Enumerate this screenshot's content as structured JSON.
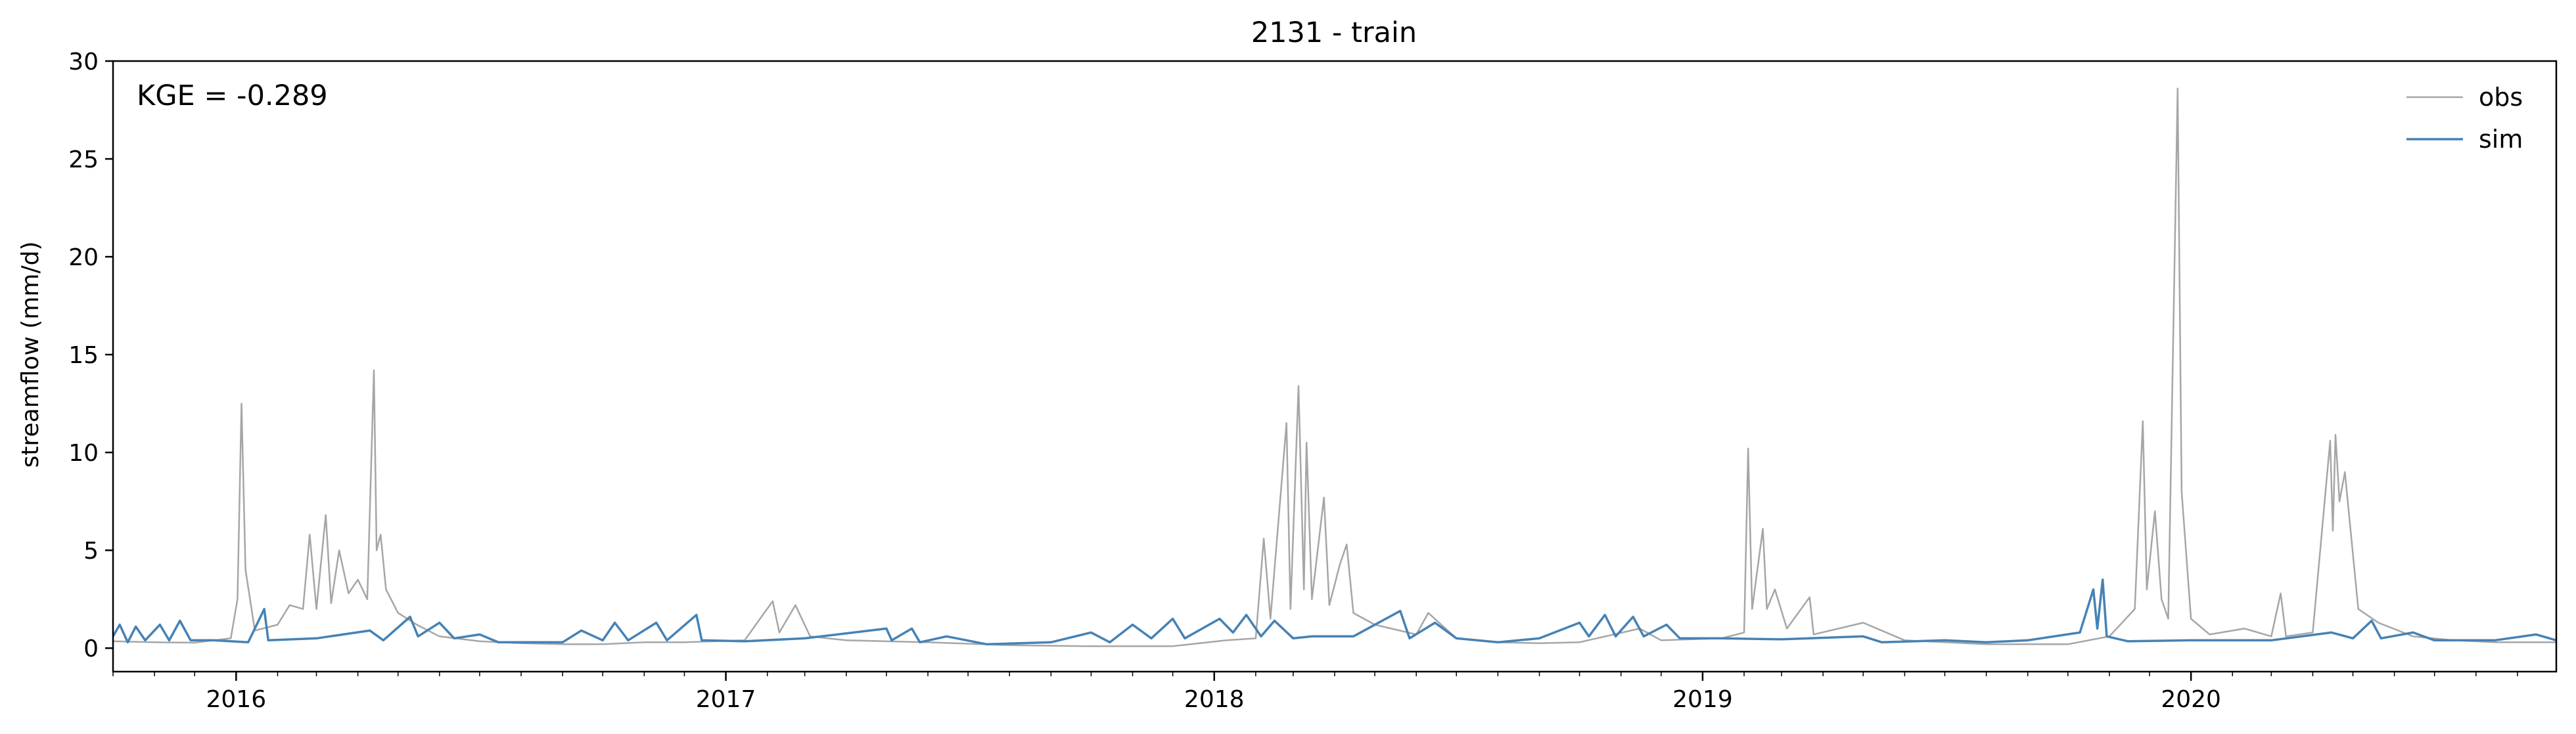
{
  "chart_data": {
    "type": "line",
    "title": "2131 - train",
    "xlabel": "",
    "ylabel": "streamflow (mm/d)",
    "annotation": "KGE = -0.289",
    "xlim": [
      "2015-10-01",
      "2020-09-30"
    ],
    "ylim": [
      -1.2,
      30
    ],
    "yticks": [
      0,
      5,
      10,
      15,
      20,
      25,
      30
    ],
    "xticks": [
      {
        "date": "2016-01-01",
        "label": "2016"
      },
      {
        "date": "2017-01-01",
        "label": "2017"
      },
      {
        "date": "2018-01-01",
        "label": "2018"
      },
      {
        "date": "2019-01-01",
        "label": "2019"
      },
      {
        "date": "2020-01-01",
        "label": "2020"
      }
    ],
    "legend": {
      "placement": "top-right"
    },
    "series": [
      {
        "name": "obs",
        "color": "#a6a6a6",
        "points": [
          [
            "2015-10-01",
            0.35
          ],
          [
            "2015-11-01",
            0.3
          ],
          [
            "2015-12-01",
            0.28
          ],
          [
            "2015-12-28",
            0.5
          ],
          [
            "2016-01-02",
            2.5
          ],
          [
            "2016-01-05",
            12.5
          ],
          [
            "2016-01-08",
            4.0
          ],
          [
            "2016-01-15",
            0.9
          ],
          [
            "2016-02-01",
            1.2
          ],
          [
            "2016-02-10",
            2.2
          ],
          [
            "2016-02-20",
            2.0
          ],
          [
            "2016-02-25",
            5.8
          ],
          [
            "2016-03-01",
            2.0
          ],
          [
            "2016-03-08",
            6.8
          ],
          [
            "2016-03-12",
            2.3
          ],
          [
            "2016-03-18",
            5.0
          ],
          [
            "2016-03-25",
            2.8
          ],
          [
            "2016-04-01",
            3.5
          ],
          [
            "2016-04-08",
            2.5
          ],
          [
            "2016-04-13",
            14.2
          ],
          [
            "2016-04-15",
            5.0
          ],
          [
            "2016-04-18",
            5.8
          ],
          [
            "2016-04-22",
            3.0
          ],
          [
            "2016-05-01",
            1.8
          ],
          [
            "2016-05-15",
            1.2
          ],
          [
            "2016-06-01",
            0.6
          ],
          [
            "2016-07-01",
            0.35
          ],
          [
            "2016-08-01",
            0.25
          ],
          [
            "2016-09-01",
            0.2
          ],
          [
            "2016-10-01",
            0.2
          ],
          [
            "2016-11-01",
            0.3
          ],
          [
            "2016-12-01",
            0.3
          ],
          [
            "2017-01-15",
            0.4
          ],
          [
            "2017-02-05",
            2.4
          ],
          [
            "2017-02-10",
            0.8
          ],
          [
            "2017-02-22",
            2.2
          ],
          [
            "2017-03-05",
            0.6
          ],
          [
            "2017-04-01",
            0.4
          ],
          [
            "2017-06-01",
            0.3
          ],
          [
            "2017-08-01",
            0.15
          ],
          [
            "2017-10-01",
            0.1
          ],
          [
            "2017-12-01",
            0.1
          ],
          [
            "2018-01-10",
            0.4
          ],
          [
            "2018-02-01",
            0.5
          ],
          [
            "2018-02-07",
            5.6
          ],
          [
            "2018-02-12",
            1.5
          ],
          [
            "2018-02-24",
            11.5
          ],
          [
            "2018-02-27",
            2.0
          ],
          [
            "2018-03-05",
            13.4
          ],
          [
            "2018-03-09",
            3.0
          ],
          [
            "2018-03-11",
            10.5
          ],
          [
            "2018-03-15",
            2.5
          ],
          [
            "2018-03-24",
            7.7
          ],
          [
            "2018-03-28",
            2.2
          ],
          [
            "2018-04-05",
            4.3
          ],
          [
            "2018-04-10",
            5.3
          ],
          [
            "2018-04-15",
            1.8
          ],
          [
            "2018-05-01",
            1.2
          ],
          [
            "2018-06-01",
            0.7
          ],
          [
            "2018-06-10",
            1.8
          ],
          [
            "2018-07-01",
            0.5
          ],
          [
            "2018-08-01",
            0.3
          ],
          [
            "2018-09-01",
            0.25
          ],
          [
            "2018-10-01",
            0.3
          ],
          [
            "2018-11-15",
            1.0
          ],
          [
            "2018-12-01",
            0.4
          ],
          [
            "2019-01-15",
            0.5
          ],
          [
            "2019-02-01",
            0.8
          ],
          [
            "2019-02-04",
            10.2
          ],
          [
            "2019-02-07",
            2.0
          ],
          [
            "2019-02-15",
            6.1
          ],
          [
            "2019-02-18",
            2.0
          ],
          [
            "2019-02-24",
            3.0
          ],
          [
            "2019-03-05",
            1.0
          ],
          [
            "2019-03-22",
            2.6
          ],
          [
            "2019-03-25",
            0.7
          ],
          [
            "2019-05-01",
            1.3
          ],
          [
            "2019-06-01",
            0.4
          ],
          [
            "2019-08-01",
            0.2
          ],
          [
            "2019-10-01",
            0.2
          ],
          [
            "2019-11-01",
            0.6
          ],
          [
            "2019-11-20",
            2.0
          ],
          [
            "2019-11-26",
            11.6
          ],
          [
            "2019-11-29",
            3.0
          ],
          [
            "2019-12-05",
            7.0
          ],
          [
            "2019-12-10",
            2.5
          ],
          [
            "2019-12-15",
            1.5
          ],
          [
            "2019-12-22",
            28.6
          ],
          [
            "2019-12-25",
            8.0
          ],
          [
            "2020-01-01",
            1.5
          ],
          [
            "2020-01-15",
            0.7
          ],
          [
            "2020-02-10",
            1.0
          ],
          [
            "2020-03-01",
            0.6
          ],
          [
            "2020-03-08",
            2.8
          ],
          [
            "2020-03-12",
            0.6
          ],
          [
            "2020-04-01",
            0.8
          ],
          [
            "2020-04-14",
            10.6
          ],
          [
            "2020-04-16",
            6.0
          ],
          [
            "2020-04-18",
            10.9
          ],
          [
            "2020-04-21",
            7.5
          ],
          [
            "2020-04-25",
            9.0
          ],
          [
            "2020-05-05",
            2.0
          ],
          [
            "2020-05-20",
            1.3
          ],
          [
            "2020-06-15",
            0.6
          ],
          [
            "2020-07-15",
            0.4
          ],
          [
            "2020-08-15",
            0.3
          ],
          [
            "2020-09-30",
            0.3
          ]
        ]
      },
      {
        "name": "sim",
        "color": "#4682b4",
        "points": [
          [
            "2015-10-01",
            0.6
          ],
          [
            "2015-10-06",
            1.2
          ],
          [
            "2015-10-12",
            0.3
          ],
          [
            "2015-10-18",
            1.1
          ],
          [
            "2015-10-25",
            0.4
          ],
          [
            "2015-11-05",
            1.2
          ],
          [
            "2015-11-12",
            0.4
          ],
          [
            "2015-11-20",
            1.4
          ],
          [
            "2015-11-28",
            0.4
          ],
          [
            "2015-12-15",
            0.4
          ],
          [
            "2016-01-10",
            0.3
          ],
          [
            "2016-01-22",
            2.0
          ],
          [
            "2016-01-25",
            0.4
          ],
          [
            "2016-03-01",
            0.5
          ],
          [
            "2016-04-10",
            0.9
          ],
          [
            "2016-04-20",
            0.4
          ],
          [
            "2016-05-10",
            1.6
          ],
          [
            "2016-05-16",
            0.6
          ],
          [
            "2016-06-01",
            1.3
          ],
          [
            "2016-06-12",
            0.5
          ],
          [
            "2016-07-01",
            0.7
          ],
          [
            "2016-07-15",
            0.3
          ],
          [
            "2016-09-01",
            0.3
          ],
          [
            "2016-09-15",
            0.9
          ],
          [
            "2016-10-01",
            0.4
          ],
          [
            "2016-10-10",
            1.3
          ],
          [
            "2016-10-20",
            0.4
          ],
          [
            "2016-11-10",
            1.3
          ],
          [
            "2016-11-18",
            0.4
          ],
          [
            "2016-12-10",
            1.7
          ],
          [
            "2016-12-14",
            0.4
          ],
          [
            "2017-01-15",
            0.35
          ],
          [
            "2017-03-01",
            0.5
          ],
          [
            "2017-05-01",
            1.0
          ],
          [
            "2017-05-05",
            0.4
          ],
          [
            "2017-05-20",
            1.0
          ],
          [
            "2017-05-26",
            0.3
          ],
          [
            "2017-06-15",
            0.6
          ],
          [
            "2017-07-15",
            0.2
          ],
          [
            "2017-09-01",
            0.3
          ],
          [
            "2017-10-01",
            0.8
          ],
          [
            "2017-10-15",
            0.3
          ],
          [
            "2017-11-01",
            1.2
          ],
          [
            "2017-11-15",
            0.5
          ],
          [
            "2017-12-01",
            1.5
          ],
          [
            "2017-12-10",
            0.5
          ],
          [
            "2018-01-05",
            1.5
          ],
          [
            "2018-01-15",
            0.8
          ],
          [
            "2018-01-25",
            1.7
          ],
          [
            "2018-02-05",
            0.6
          ],
          [
            "2018-02-15",
            1.4
          ],
          [
            "2018-03-01",
            0.5
          ],
          [
            "2018-03-15",
            0.6
          ],
          [
            "2018-04-15",
            0.6
          ],
          [
            "2018-05-20",
            1.9
          ],
          [
            "2018-05-27",
            0.5
          ],
          [
            "2018-06-15",
            1.3
          ],
          [
            "2018-07-01",
            0.5
          ],
          [
            "2018-08-01",
            0.3
          ],
          [
            "2018-09-01",
            0.5
          ],
          [
            "2018-10-01",
            1.3
          ],
          [
            "2018-10-08",
            0.6
          ],
          [
            "2018-10-20",
            1.7
          ],
          [
            "2018-10-28",
            0.6
          ],
          [
            "2018-11-10",
            1.6
          ],
          [
            "2018-11-18",
            0.6
          ],
          [
            "2018-12-05",
            1.2
          ],
          [
            "2018-12-15",
            0.5
          ],
          [
            "2019-01-15",
            0.5
          ],
          [
            "2019-03-01",
            0.45
          ],
          [
            "2019-05-01",
            0.6
          ],
          [
            "2019-05-15",
            0.3
          ],
          [
            "2019-07-01",
            0.4
          ],
          [
            "2019-08-01",
            0.3
          ],
          [
            "2019-09-01",
            0.4
          ],
          [
            "2019-10-10",
            0.8
          ],
          [
            "2019-10-20",
            3.0
          ],
          [
            "2019-10-23",
            1.0
          ],
          [
            "2019-10-27",
            3.5
          ],
          [
            "2019-10-30",
            0.6
          ],
          [
            "2019-11-15",
            0.35
          ],
          [
            "2020-01-01",
            0.4
          ],
          [
            "2020-03-01",
            0.4
          ],
          [
            "2020-04-15",
            0.8
          ],
          [
            "2020-05-01",
            0.5
          ],
          [
            "2020-05-15",
            1.4
          ],
          [
            "2020-05-22",
            0.5
          ],
          [
            "2020-06-15",
            0.8
          ],
          [
            "2020-07-01",
            0.4
          ],
          [
            "2020-08-15",
            0.4
          ],
          [
            "2020-09-15",
            0.7
          ],
          [
            "2020-09-30",
            0.4
          ]
        ]
      }
    ]
  }
}
